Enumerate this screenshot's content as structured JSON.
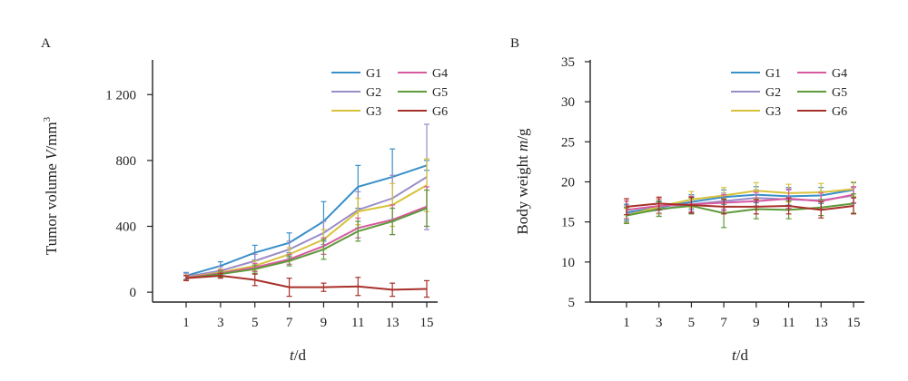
{
  "chart_data": [
    {
      "type": "line",
      "panel_label": "A",
      "title": "",
      "ylabel_prefix": "Tumor volume ",
      "ylabel_var": "V",
      "ylabel_unit": "/mm",
      "ylabel_exp": "3",
      "xlabel_var": "t",
      "xlabel_unit": "/d",
      "x": [
        1,
        3,
        5,
        7,
        9,
        11,
        13,
        15
      ],
      "x_tick_labels": [
        "1",
        "3",
        "5",
        "7",
        "9",
        "11",
        "13",
        "15"
      ],
      "ylim": [
        -60,
        1400
      ],
      "yticks": [
        0,
        400,
        800,
        1200
      ],
      "ytick_labels": [
        "0",
        "400",
        "800",
        "1 200"
      ],
      "grid": false,
      "legend_position": "top-right",
      "series": [
        {
          "name": "G1",
          "color": "#3a8fc8",
          "values": [
            100,
            160,
            240,
            300,
            430,
            640,
            700,
            770
          ],
          "errors": [
            20,
            25,
            45,
            60,
            120,
            130,
            170,
            30
          ]
        },
        {
          "name": "G2",
          "color": "#9a8cc8",
          "values": [
            95,
            130,
            190,
            260,
            360,
            500,
            570,
            700
          ],
          "errors": [
            20,
            25,
            40,
            50,
            70,
            110,
            140,
            320
          ]
        },
        {
          "name": "G3",
          "color": "#d8c23a",
          "values": [
            90,
            120,
            160,
            230,
            320,
            490,
            530,
            650
          ],
          "errors": [
            15,
            20,
            30,
            40,
            60,
            80,
            130,
            160
          ]
        },
        {
          "name": "G4",
          "color": "#d75aa0",
          "values": [
            88,
            115,
            150,
            200,
            280,
            390,
            440,
            520
          ],
          "errors": [
            15,
            20,
            25,
            30,
            50,
            60,
            90,
            120
          ]
        },
        {
          "name": "G5",
          "color": "#5e9a3a",
          "values": [
            85,
            110,
            140,
            190,
            260,
            370,
            430,
            510
          ],
          "errors": [
            15,
            18,
            25,
            30,
            60,
            60,
            80,
            110
          ]
        },
        {
          "name": "G6",
          "color": "#a8302a",
          "values": [
            85,
            100,
            75,
            30,
            30,
            35,
            15,
            20
          ],
          "errors": [
            15,
            15,
            35,
            55,
            25,
            55,
            40,
            50
          ]
        }
      ]
    },
    {
      "type": "line",
      "panel_label": "B",
      "title": "",
      "ylabel_prefix": "Body weight ",
      "ylabel_var": "m",
      "ylabel_unit": "/g",
      "ylabel_exp": "",
      "xlabel_var": "t",
      "xlabel_unit": "/d",
      "x": [
        1,
        3,
        5,
        7,
        9,
        11,
        13,
        15
      ],
      "x_tick_labels": [
        "1",
        "3",
        "5",
        "7",
        "9",
        "11",
        "13",
        "15"
      ],
      "ylim": [
        5,
        35
      ],
      "yticks": [
        5,
        10,
        15,
        20,
        25,
        30,
        35
      ],
      "ytick_labels": [
        "5",
        "10",
        "15",
        "20",
        "25",
        "30",
        "35"
      ],
      "grid": false,
      "legend_position": "top-right",
      "series": [
        {
          "name": "G1",
          "color": "#3a8fc8",
          "values": [
            16.2,
            16.8,
            17.5,
            18.1,
            18.4,
            18.2,
            18.3,
            19.0
          ],
          "errors": [
            1.0,
            0.8,
            0.9,
            0.9,
            1.0,
            1.1,
            1.0,
            0.9
          ]
        },
        {
          "name": "G2",
          "color": "#9a8cc8",
          "values": [
            16.0,
            16.5,
            17.2,
            17.6,
            18.0,
            17.8,
            17.7,
            18.3
          ],
          "errors": [
            1.0,
            0.8,
            0.9,
            1.0,
            1.0,
            1.2,
            1.1,
            1.0
          ]
        },
        {
          "name": "G3",
          "color": "#d8c23a",
          "values": [
            15.8,
            16.9,
            17.8,
            18.3,
            18.9,
            18.6,
            18.7,
            19.1
          ],
          "errors": [
            0.9,
            0.9,
            1.0,
            1.0,
            1.0,
            1.1,
            1.1,
            0.9
          ]
        },
        {
          "name": "G4",
          "color": "#d75aa0",
          "values": [
            16.5,
            17.0,
            17.2,
            17.4,
            17.6,
            17.9,
            17.6,
            18.4
          ],
          "errors": [
            1.1,
            0.9,
            1.0,
            1.0,
            1.1,
            1.2,
            1.0,
            1.0
          ]
        },
        {
          "name": "G5",
          "color": "#5e9a3a",
          "values": [
            15.8,
            16.6,
            17.0,
            16.1,
            16.6,
            16.5,
            16.8,
            17.3
          ],
          "errors": [
            1.0,
            0.9,
            1.0,
            1.8,
            1.2,
            1.1,
            1.0,
            1.2
          ]
        },
        {
          "name": "G6",
          "color": "#a8302a",
          "values": [
            16.9,
            17.3,
            17.1,
            16.9,
            16.9,
            17.0,
            16.5,
            17.0
          ],
          "errors": [
            1.0,
            0.8,
            1.0,
            0.9,
            0.9,
            1.0,
            1.0,
            1.0
          ]
        }
      ]
    }
  ]
}
